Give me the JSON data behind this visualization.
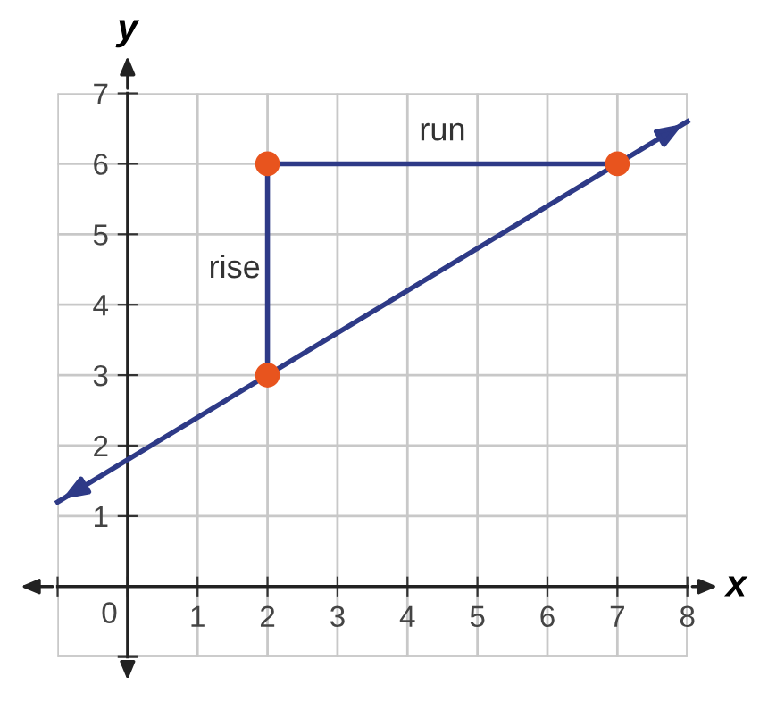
{
  "chart_data": {
    "type": "line",
    "xlabel": "x",
    "ylabel": "y",
    "xlim": [
      -1,
      8
    ],
    "ylim": [
      -1,
      7
    ],
    "xticks": [
      {
        "value": -1,
        "label": null
      },
      0,
      1,
      2,
      3,
      4,
      5,
      6,
      7,
      8
    ],
    "yticks": [
      {
        "value": -1,
        "label": null
      },
      1,
      2,
      3,
      4,
      5,
      6,
      7
    ],
    "grid": true,
    "series": [
      {
        "color": "#2e3a87",
        "x": [
          -1,
          8
        ],
        "values": [
          1.2,
          6.6
        ]
      },
      {
        "color": "#2e3a87",
        "x": [
          2,
          2,
          7
        ],
        "values": [
          3,
          6,
          6
        ]
      },
      {
        "type": "scatter",
        "color": "#e8541e",
        "marker": "circle",
        "x": [
          2,
          2,
          7
        ],
        "values": [
          3,
          6,
          6
        ]
      }
    ],
    "annotations": [
      "rise",
      "run"
    ]
  }
}
